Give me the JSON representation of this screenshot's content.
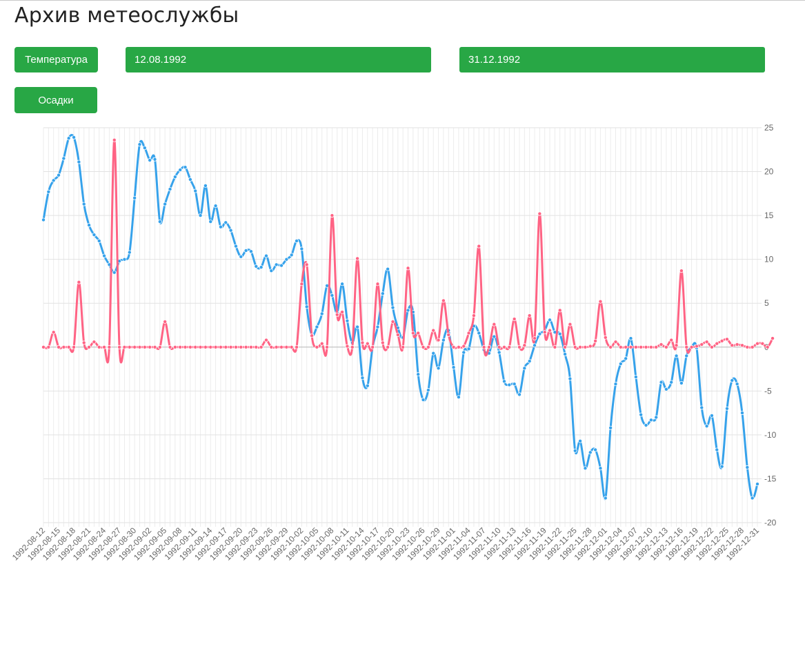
{
  "page": {
    "title": "Архив метеослужбы"
  },
  "controls": {
    "temperature_button": "Температура",
    "precipitation_button": "Осадки",
    "date_from": "12.08.1992",
    "date_to": "31.12.1992"
  },
  "colors": {
    "button": "#28a745",
    "temperature_series": "#36a2eb",
    "precipitation_series": "#ff6384",
    "grid": "#e5e5e5"
  },
  "chart_data": {
    "type": "line",
    "start_date": "1992-08-12",
    "x_tick_labels": [
      "1992-08-12",
      "1992-08-15",
      "1992-08-18",
      "1992-08-21",
      "1992-08-24",
      "1992-08-27",
      "1992-08-30",
      "1992-09-02",
      "1992-09-05",
      "1992-09-08",
      "1992-09-11",
      "1992-09-14",
      "1992-09-17",
      "1992-09-20",
      "1992-09-23",
      "1992-09-26",
      "1992-09-29",
      "1992-10-02",
      "1992-10-05",
      "1992-10-08",
      "1992-10-11",
      "1992-10-14",
      "1992-10-17",
      "1992-10-20",
      "1992-10-23",
      "1992-10-26",
      "1992-10-29",
      "1992-11-01",
      "1992-11-04",
      "1992-11-07",
      "1992-11-10",
      "1992-11-13",
      "1992-11-16",
      "1992-11-19",
      "1992-11-22",
      "1992-11-25",
      "1992-11-28",
      "1992-12-01",
      "1992-12-04",
      "1992-12-07",
      "1992-12-10",
      "1992-12-13",
      "1992-12-16",
      "1992-12-19",
      "1992-12-22",
      "1992-12-25",
      "1992-12-28",
      "1992-12-31"
    ],
    "y_ticks": [
      25,
      20,
      15,
      10,
      5,
      0,
      -5,
      -10,
      -15,
      -20
    ],
    "ylim": [
      -20,
      25
    ],
    "grid": true,
    "y_axis_position": "right",
    "series": [
      {
        "color": "#36a2eb",
        "values": [
          14.5,
          17.7,
          19.0,
          19.6,
          21.5,
          23.8,
          23.9,
          21.1,
          16.3,
          13.9,
          12.8,
          12.1,
          10.4,
          9.4,
          8.5,
          9.8,
          10.0,
          10.8,
          17.0,
          23.1,
          22.7,
          21.3,
          21.4,
          14.3,
          16.3,
          18.0,
          19.4,
          20.2,
          20.5,
          19.1,
          17.8,
          15.0,
          18.4,
          14.3,
          16.1,
          13.7,
          14.2,
          13.3,
          11.5,
          10.3,
          11.0,
          10.9,
          9.2,
          9.1,
          10.4,
          8.7,
          9.4,
          9.3,
          10.0,
          10.5,
          12.1,
          11.2,
          4.6,
          1.4,
          2.3,
          3.8,
          7.0,
          5.9,
          3.9,
          7.2,
          3.0,
          0.5,
          2.3,
          -3.5,
          -4.4,
          0.0,
          2.3,
          6.1,
          8.9,
          4.5,
          2.2,
          1.1,
          4.2,
          4.0,
          -3.1,
          -6.0,
          -4.9,
          -0.7,
          -2.4,
          0.8,
          1.9,
          -2.3,
          -5.7,
          -0.6,
          -0.2,
          2.4,
          1.6,
          -0.3,
          -0.7,
          1.2,
          -0.6,
          -3.9,
          -4.3,
          -4.2,
          -5.4,
          -2.4,
          -1.6,
          0.2,
          1.5,
          1.9,
          3.1,
          1.7,
          1.5,
          -0.8,
          -3.6,
          -11.8,
          -10.7,
          -13.8,
          -12.0,
          -11.7,
          -13.8,
          -17.2,
          -9.2,
          -4.2,
          -1.9,
          -1.3,
          1.0,
          -3.4,
          -7.7,
          -8.9,
          -8.3,
          -8.0,
          -4.0,
          -4.8,
          -4.0,
          -1.0,
          -4.1,
          -1.0,
          0.0,
          -0.1,
          -6.9,
          -9.0,
          -7.8,
          -11.7,
          -13.6,
          -7.0,
          -3.8,
          -4.2,
          -7.5,
          -13.7,
          -17.2,
          -15.6
        ]
      },
      {
        "color": "#ff6384",
        "values": [
          0,
          0,
          1.7,
          0,
          0,
          0,
          0,
          7.4,
          0.5,
          0,
          0.6,
          0,
          0,
          0,
          23.6,
          0,
          0,
          0,
          0,
          0,
          0,
          0,
          0,
          0,
          2.9,
          0,
          0,
          0,
          0,
          0,
          0,
          0,
          0,
          0,
          0,
          0,
          0,
          0,
          0,
          0,
          0,
          0,
          0,
          0,
          0.8,
          0,
          0,
          0,
          0,
          0,
          0,
          7.2,
          9.4,
          1.3,
          0,
          0.4,
          0,
          15.0,
          3.7,
          4.0,
          0.1,
          0,
          10.1,
          0.5,
          0.4,
          0,
          7.2,
          0.5,
          0,
          2.9,
          1.4,
          0,
          9.0,
          1.6,
          1.6,
          0,
          0,
          1.9,
          0.8,
          5.3,
          1.4,
          0,
          0,
          0.1,
          1.6,
          3.6,
          11.5,
          0,
          0,
          2.6,
          0,
          0,
          0,
          3.2,
          0,
          0.2,
          3.6,
          1.0,
          15.2,
          1.7,
          1.9,
          0,
          4.2,
          0,
          2.6,
          0,
          0,
          0,
          0.1,
          0.7,
          5.2,
          1.1,
          0,
          0.6,
          0,
          0,
          0,
          0,
          0,
          0,
          0,
          0,
          0.3,
          0,
          0.8,
          0.2,
          8.7,
          0,
          0,
          0.1,
          0.3,
          0.6,
          0,
          0.4,
          0.7,
          0.9,
          0.2,
          0.3,
          0.2,
          0,
          0,
          0.4,
          0.4,
          0,
          1.0
        ]
      }
    ]
  }
}
